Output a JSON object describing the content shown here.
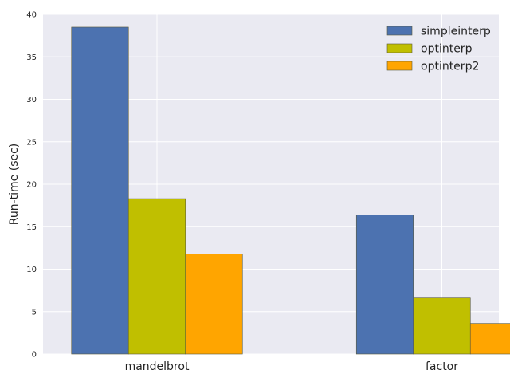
{
  "chart_data": {
    "type": "bar",
    "categories": [
      "mandelbrot",
      "factor"
    ],
    "series": [
      {
        "name": "simpleinterp",
        "values": [
          38.5,
          16.4
        ],
        "color": "#4c72b0"
      },
      {
        "name": "optinterp",
        "values": [
          18.3,
          6.6
        ],
        "color": "#c0bf00"
      },
      {
        "name": "optinterp2",
        "values": [
          11.8,
          3.6
        ],
        "color": "#ffa500"
      }
    ],
    "title": "",
    "xlabel": "",
    "ylabel": "Run-time (sec)",
    "ylim": [
      0,
      40
    ],
    "yticks": [
      0,
      5,
      10,
      15,
      20,
      25,
      30,
      35,
      40
    ],
    "grid": true,
    "legend_position": "top-right",
    "background_color": "#eaeaf2",
    "grid_color": "#ffffff"
  }
}
